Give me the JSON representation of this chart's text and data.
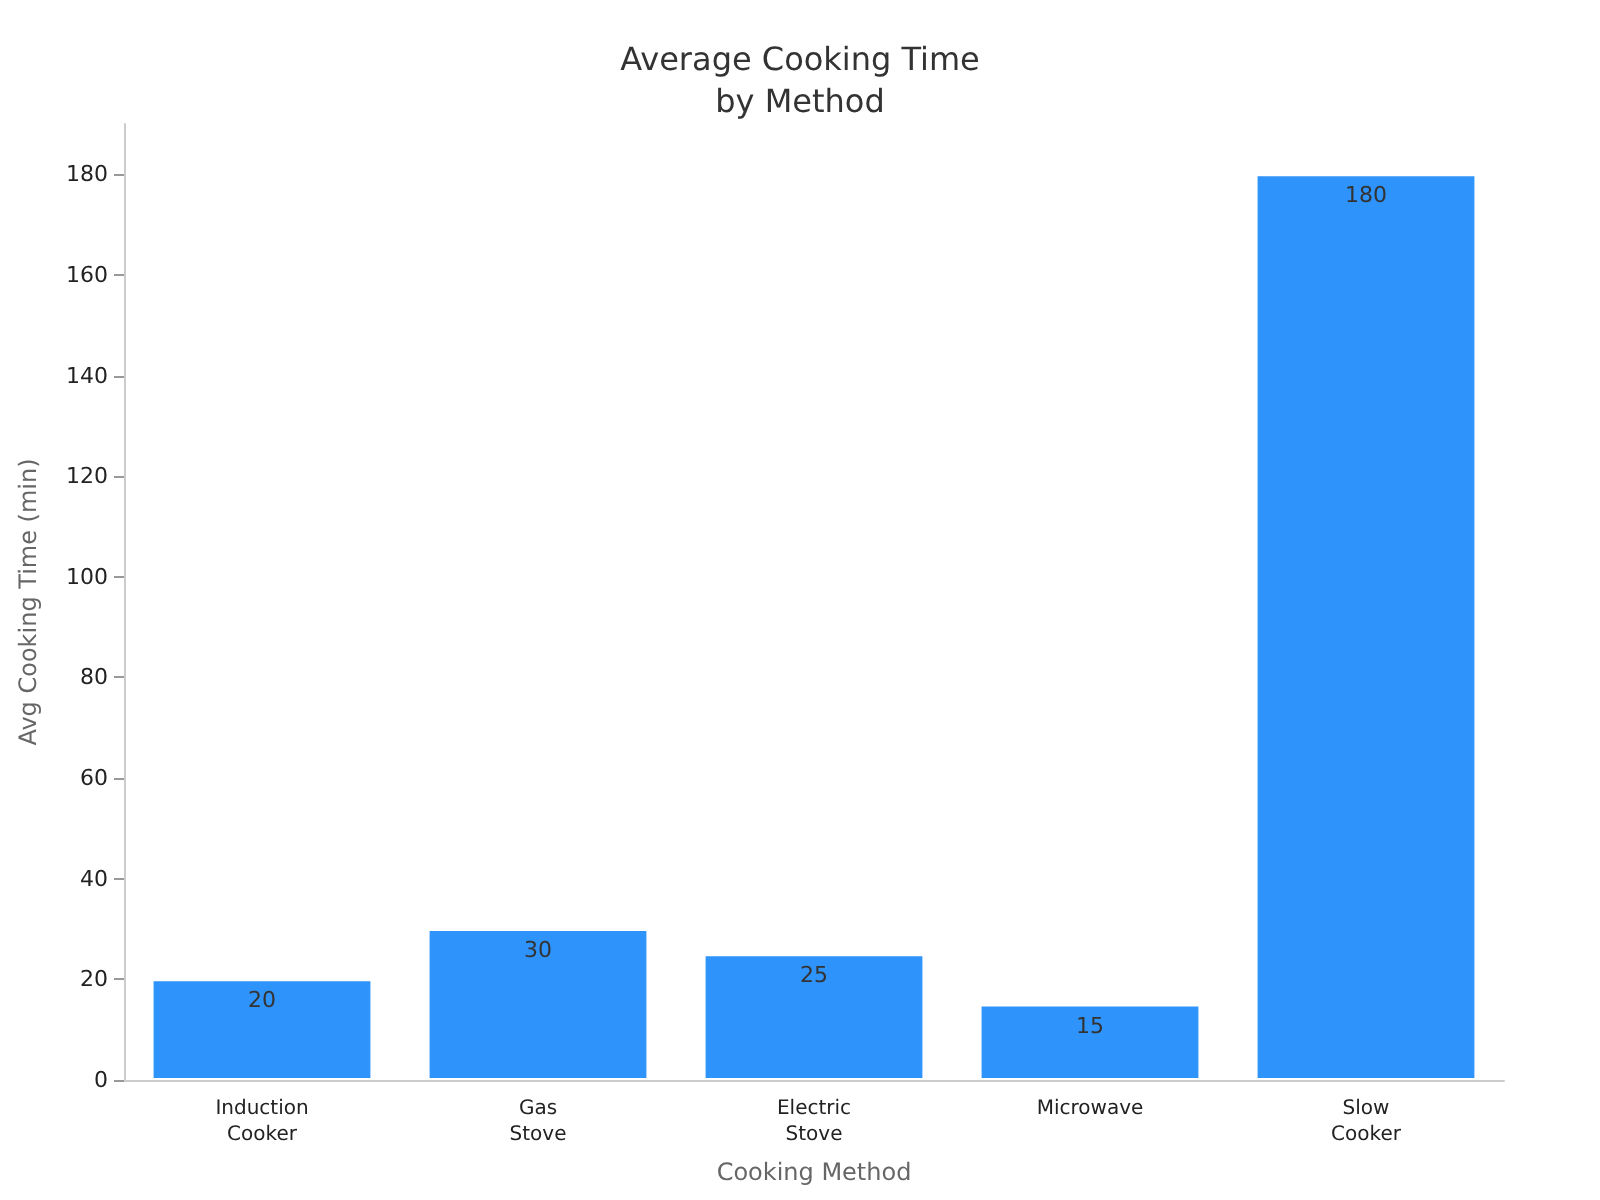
{
  "chart_data": {
    "type": "bar",
    "title": "Average Cooking Time\nby Method",
    "xlabel": "Cooking Method",
    "ylabel": "Avg Cooking Time (min)",
    "categories": [
      "Induction\nCooker",
      "Gas\nStove",
      "Electric\nStove",
      "Microwave",
      "Slow\nCooker"
    ],
    "values": [
      20,
      30,
      25,
      15,
      180
    ],
    "color": "#2e93fa",
    "ylim": [
      0,
      190
    ],
    "yticks": [
      0,
      20,
      40,
      60,
      80,
      100,
      120,
      140,
      160,
      180
    ],
    "grid": false,
    "data_labels": true
  }
}
